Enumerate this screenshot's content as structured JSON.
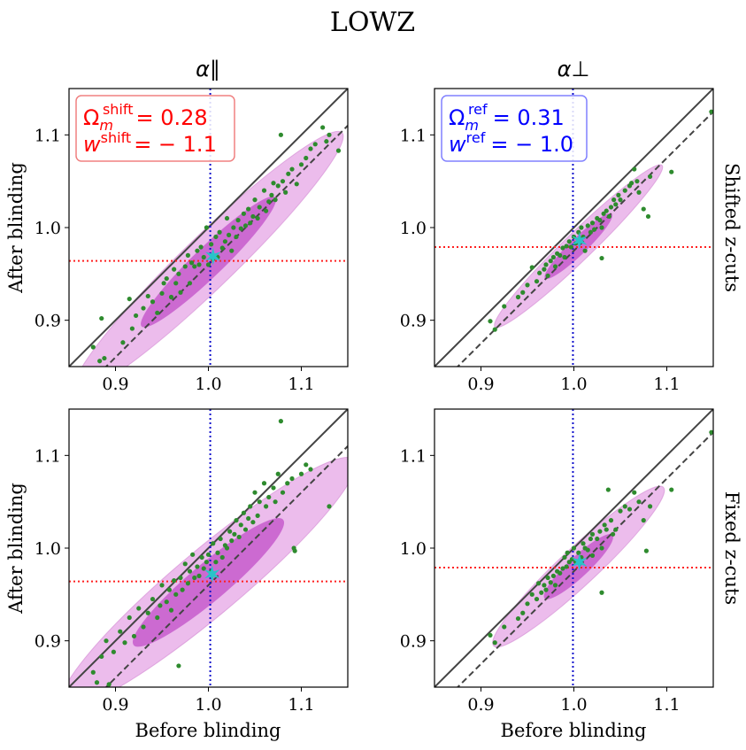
{
  "figure": {
    "title": "LOWZ",
    "column_titles": [
      "α∥",
      "α⊥"
    ],
    "row_labels": [
      "Shifted z-cuts",
      "Fixed z-cuts"
    ],
    "xlabel": "Before blinding",
    "ylabel": "After blinding",
    "colors": {
      "points": "#2e8b2e",
      "ellipse_outer": "#e6a6e6",
      "ellipse_inner": "#c24fc8",
      "identity_line": "#444444",
      "fit_line": "#444444",
      "hline": "#ff2020",
      "vline": "#1010cc",
      "star": "#29c3c8",
      "legend_shift_text": "#ff0000",
      "legend_shift_border": "#f08080",
      "legend_ref_text": "#0000ff",
      "legend_ref_border": "#8080ff"
    }
  },
  "legends": {
    "shift": {
      "omega_base": "Ω",
      "omega_sub": "m",
      "omega_sup": "shift",
      "omega_value": "= 0.28",
      "w_base": "w",
      "w_sup": "shift",
      "w_value": "= − 1.1"
    },
    "ref": {
      "omega_base": "Ω",
      "omega_sub": "m",
      "omega_sup": "ref",
      "omega_value": "= 0.31",
      "w_base": "w",
      "w_sup": "ref",
      "w_value": "= − 1.0"
    }
  },
  "chart_data": [
    {
      "type": "scatter",
      "panel": "top-left",
      "xlim": [
        0.85,
        1.15
      ],
      "ylim": [
        0.85,
        1.15
      ],
      "xticks": [
        0.9,
        1.0,
        1.1
      ],
      "yticks": [
        0.9,
        1.0,
        1.1
      ],
      "tick_labels": [
        "0.9",
        "1.0",
        "1.1"
      ],
      "identity_line": true,
      "fit_line": {
        "slope": 1.0,
        "intercept": -0.04
      },
      "hline_y": 0.964,
      "vline_x": 1.002,
      "star": [
        1.005,
        0.969
      ],
      "ellipse_center": [
        1.0,
        0.963
      ],
      "ellipse_angle_deg": 44,
      "ellipse_outer_axes": [
        0.2,
        0.028
      ],
      "ellipse_inner_axes": [
        0.1,
        0.016
      ],
      "points": [
        [
          0.876,
          0.871
        ],
        [
          0.883,
          0.856
        ],
        [
          0.885,
          0.902
        ],
        [
          0.888,
          0.859
        ],
        [
          0.908,
          0.876
        ],
        [
          0.915,
          0.923
        ],
        [
          0.918,
          0.891
        ],
        [
          0.922,
          0.905
        ],
        [
          0.93,
          0.913
        ],
        [
          0.935,
          0.926
        ],
        [
          0.94,
          0.92
        ],
        [
          0.945,
          0.908
        ],
        [
          0.95,
          0.929
        ],
        [
          0.952,
          0.94
        ],
        [
          0.955,
          0.945
        ],
        [
          0.96,
          0.925
        ],
        [
          0.963,
          0.955
        ],
        [
          0.965,
          0.94
        ],
        [
          0.968,
          0.95
        ],
        [
          0.97,
          0.93
        ],
        [
          0.975,
          0.958
        ],
        [
          0.978,
          0.97
        ],
        [
          0.98,
          0.94
        ],
        [
          0.982,
          0.962
        ],
        [
          0.985,
          0.958
        ],
        [
          0.988,
          0.975
        ],
        [
          0.99,
          0.96
        ],
        [
          0.992,
          0.979
        ],
        [
          0.995,
          0.968
        ],
        [
          0.998,
          1.0
        ],
        [
          1.0,
          0.96
        ],
        [
          1.003,
          0.982
        ],
        [
          1.005,
          0.966
        ],
        [
          1.008,
          0.99
        ],
        [
          1.01,
          0.968
        ],
        [
          1.012,
          0.995
        ],
        [
          1.015,
          0.978
        ],
        [
          1.018,
          0.985
        ],
        [
          1.02,
          1.01
        ],
        [
          1.022,
          0.992
        ],
        [
          1.025,
          0.975
        ],
        [
          1.027,
          1.0
        ],
        [
          1.03,
          0.99
        ],
        [
          1.032,
          1.008
        ],
        [
          1.035,
          0.999
        ],
        [
          1.038,
          1.015
        ],
        [
          1.04,
          1.002
        ],
        [
          1.043,
          1.02
        ],
        [
          1.045,
          1.005
        ],
        [
          1.048,
          1.012
        ],
        [
          1.05,
          1.03
        ],
        [
          1.053,
          1.01
        ],
        [
          1.055,
          1.022
        ],
        [
          1.06,
          1.04
        ],
        [
          1.062,
          1.018
        ],
        [
          1.065,
          1.028
        ],
        [
          1.068,
          1.035
        ],
        [
          1.07,
          1.048
        ],
        [
          1.072,
          1.03
        ],
        [
          1.075,
          1.045
        ],
        [
          1.078,
          1.1
        ],
        [
          1.08,
          1.05
        ],
        [
          1.083,
          1.038
        ],
        [
          1.086,
          1.058
        ],
        [
          1.09,
          1.063
        ],
        [
          1.095,
          1.047
        ],
        [
          1.1,
          1.068
        ],
        [
          1.105,
          1.075
        ],
        [
          1.11,
          1.085
        ],
        [
          1.115,
          1.09
        ],
        [
          1.123,
          1.108
        ],
        [
          1.127,
          1.093
        ],
        [
          1.13,
          1.1
        ],
        [
          1.14,
          1.083
        ]
      ]
    },
    {
      "type": "scatter",
      "panel": "top-right",
      "xlim": [
        0.85,
        1.15
      ],
      "ylim": [
        0.85,
        1.15
      ],
      "xticks": [
        0.9,
        1.0,
        1.1
      ],
      "yticks": [
        0.9,
        1.0,
        1.1
      ],
      "tick_labels": [
        "0.9",
        "1.0",
        "1.1"
      ],
      "identity_line": true,
      "fit_line": {
        "slope": 1.0,
        "intercept": -0.025
      },
      "hline_y": 0.979,
      "vline_x": 0.999,
      "star": [
        1.006,
        0.986
      ],
      "ellipse_center": [
        1.005,
        0.98
      ],
      "ellipse_angle_deg": 44,
      "ellipse_outer_axes": [
        0.125,
        0.015
      ],
      "ellipse_inner_axes": [
        0.05,
        0.009
      ],
      "points": [
        [
          0.91,
          0.899
        ],
        [
          0.915,
          0.89
        ],
        [
          0.925,
          0.915
        ],
        [
          0.94,
          0.925
        ],
        [
          0.945,
          0.93
        ],
        [
          0.95,
          0.938
        ],
        [
          0.955,
          0.957
        ],
        [
          0.96,
          0.942
        ],
        [
          0.963,
          0.951
        ],
        [
          0.968,
          0.955
        ],
        [
          0.97,
          0.96
        ],
        [
          0.972,
          0.948
        ],
        [
          0.975,
          0.964
        ],
        [
          0.978,
          0.968
        ],
        [
          0.98,
          0.958
        ],
        [
          0.982,
          0.972
        ],
        [
          0.985,
          0.97
        ],
        [
          0.988,
          0.978
        ],
        [
          0.99,
          0.968
        ],
        [
          0.992,
          0.98
        ],
        [
          0.995,
          0.985
        ],
        [
          0.997,
          0.979
        ],
        [
          1.0,
          0.99
        ],
        [
          1.002,
          0.983
        ],
        [
          1.005,
          0.995
        ],
        [
          1.008,
          1.0
        ],
        [
          1.01,
          0.99
        ],
        [
          1.012,
          0.975
        ],
        [
          1.015,
          1.002
        ],
        [
          1.018,
          0.995
        ],
        [
          1.02,
          1.005
        ],
        [
          1.022,
          0.998
        ],
        [
          1.025,
          1.01
        ],
        [
          1.028,
          1.008
        ],
        [
          1.03,
          1.0
        ],
        [
          1.03,
          0.967
        ],
        [
          1.032,
          1.015
        ],
        [
          1.035,
          1.018
        ],
        [
          1.038,
          1.012
        ],
        [
          1.04,
          1.022
        ],
        [
          1.043,
          1.03
        ],
        [
          1.045,
          1.025
        ],
        [
          1.048,
          1.035
        ],
        [
          1.05,
          1.03
        ],
        [
          1.055,
          1.04
        ],
        [
          1.06,
          1.045
        ],
        [
          1.062,
          1.048
        ],
        [
          1.065,
          1.063
        ],
        [
          1.068,
          1.05
        ],
        [
          1.07,
          1.038
        ],
        [
          1.075,
          1.02
        ],
        [
          1.08,
          1.012
        ],
        [
          1.082,
          1.055
        ],
        [
          1.105,
          1.06
        ],
        [
          1.148,
          1.125
        ]
      ]
    },
    {
      "type": "scatter",
      "panel": "bottom-left",
      "xlim": [
        0.85,
        1.15
      ],
      "ylim": [
        0.85,
        1.15
      ],
      "xticks": [
        0.9,
        1.0,
        1.1
      ],
      "yticks": [
        0.9,
        1.0,
        1.1
      ],
      "tick_labels": [
        "0.9",
        "1.0",
        "1.1"
      ],
      "identity_line": true,
      "fit_line": {
        "slope": 1.0,
        "intercept": -0.04
      },
      "hline_y": 0.964,
      "vline_x": 1.002,
      "star": [
        1.004,
        0.972
      ],
      "ellipse_center": [
        1.0,
        0.963
      ],
      "ellipse_angle_deg": 40,
      "ellipse_outer_axes": [
        0.205,
        0.035
      ],
      "ellipse_inner_axes": [
        0.105,
        0.02
      ],
      "points": [
        [
          0.876,
          0.866
        ],
        [
          0.88,
          0.855
        ],
        [
          0.885,
          0.883
        ],
        [
          0.89,
          0.9
        ],
        [
          0.893,
          0.853
        ],
        [
          0.898,
          0.888
        ],
        [
          0.905,
          0.91
        ],
        [
          0.91,
          0.898
        ],
        [
          0.915,
          0.925
        ],
        [
          0.92,
          0.905
        ],
        [
          0.925,
          0.935
        ],
        [
          0.93,
          0.915
        ],
        [
          0.935,
          0.93
        ],
        [
          0.94,
          0.945
        ],
        [
          0.945,
          0.925
        ],
        [
          0.948,
          0.938
        ],
        [
          0.95,
          0.96
        ],
        [
          0.955,
          0.942
        ],
        [
          0.958,
          0.955
        ],
        [
          0.96,
          0.933
        ],
        [
          0.963,
          0.965
        ],
        [
          0.965,
          0.95
        ],
        [
          0.968,
          0.873
        ],
        [
          0.97,
          0.968
        ],
        [
          0.972,
          0.955
        ],
        [
          0.975,
          0.983
        ],
        [
          0.978,
          0.962
        ],
        [
          0.98,
          0.975
        ],
        [
          0.983,
          0.993
        ],
        [
          0.985,
          0.968
        ],
        [
          0.988,
          0.98
        ],
        [
          0.99,
          0.97
        ],
        [
          0.993,
          0.99
        ],
        [
          0.995,
          0.978
        ],
        [
          0.998,
          0.985
        ],
        [
          1.0,
          0.993
        ],
        [
          1.003,
          0.975
        ],
        [
          1.005,
          1.005
        ],
        [
          1.008,
          0.985
        ],
        [
          1.01,
          0.995
        ],
        [
          1.013,
          1.01
        ],
        [
          1.015,
          0.99
        ],
        [
          1.018,
          1.003
        ],
        [
          1.02,
          1.0
        ],
        [
          1.023,
          1.018
        ],
        [
          1.025,
          1.008
        ],
        [
          1.028,
          1.015
        ],
        [
          1.03,
          1.03
        ],
        [
          1.033,
          1.012
        ],
        [
          1.035,
          1.025
        ],
        [
          1.038,
          1.038
        ],
        [
          1.04,
          1.02
        ],
        [
          1.043,
          1.032
        ],
        [
          1.045,
          1.045
        ],
        [
          1.048,
          1.028
        ],
        [
          1.05,
          1.06
        ],
        [
          1.053,
          1.035
        ],
        [
          1.055,
          1.05
        ],
        [
          1.06,
          1.07
        ],
        [
          1.062,
          1.045
        ],
        [
          1.065,
          1.055
        ],
        [
          1.07,
          1.065
        ],
        [
          1.072,
          1.05
        ],
        [
          1.075,
          1.08
        ],
        [
          1.078,
          1.137
        ],
        [
          1.08,
          1.06
        ],
        [
          1.085,
          1.07
        ],
        [
          1.09,
          1.075
        ],
        [
          1.092,
          1.0
        ],
        [
          1.093,
          0.997
        ],
        [
          1.1,
          1.08
        ],
        [
          1.105,
          1.09
        ],
        [
          1.11,
          1.085
        ],
        [
          1.13,
          1.045
        ]
      ]
    },
    {
      "type": "scatter",
      "panel": "bottom-right",
      "xlim": [
        0.85,
        1.15
      ],
      "ylim": [
        0.85,
        1.15
      ],
      "xticks": [
        0.9,
        1.0,
        1.1
      ],
      "yticks": [
        0.9,
        1.0,
        1.1
      ],
      "tick_labels": [
        "0.9",
        "1.0",
        "1.1"
      ],
      "identity_line": true,
      "fit_line": {
        "slope": 1.0,
        "intercept": -0.025
      },
      "hline_y": 0.979,
      "vline_x": 0.999,
      "star": [
        1.006,
        0.985
      ],
      "ellipse_center": [
        1.005,
        0.98
      ],
      "ellipse_angle_deg": 43,
      "ellipse_outer_axes": [
        0.125,
        0.02
      ],
      "ellipse_inner_axes": [
        0.05,
        0.011
      ],
      "points": [
        [
          0.91,
          0.906
        ],
        [
          0.915,
          0.898
        ],
        [
          0.925,
          0.915
        ],
        [
          0.94,
          0.924
        ],
        [
          0.945,
          0.93
        ],
        [
          0.95,
          0.94
        ],
        [
          0.955,
          0.95
        ],
        [
          0.96,
          0.945
        ],
        [
          0.962,
          0.962
        ],
        [
          0.965,
          0.952
        ],
        [
          0.968,
          0.96
        ],
        [
          0.97,
          0.955
        ],
        [
          0.972,
          0.968
        ],
        [
          0.975,
          0.963
        ],
        [
          0.978,
          0.97
        ],
        [
          0.98,
          0.96
        ],
        [
          0.982,
          0.975
        ],
        [
          0.985,
          0.973
        ],
        [
          0.988,
          0.978
        ],
        [
          0.99,
          0.99
        ],
        [
          0.992,
          0.98
        ],
        [
          0.993,
          0.995
        ],
        [
          0.995,
          0.985
        ],
        [
          0.998,
          0.988
        ],
        [
          1.0,
          1.0
        ],
        [
          1.002,
          0.985
        ],
        [
          1.005,
          0.995
        ],
        [
          1.008,
          0.99
        ],
        [
          1.01,
          1.005
        ],
        [
          1.012,
          1.0
        ],
        [
          1.015,
          0.998
        ],
        [
          1.018,
          1.01
        ],
        [
          1.02,
          1.015
        ],
        [
          1.02,
          0.992
        ],
        [
          1.025,
          1.01
        ],
        [
          1.028,
          1.018
        ],
        [
          1.03,
          1.0
        ],
        [
          1.03,
          0.952
        ],
        [
          1.033,
          1.025
        ],
        [
          1.035,
          1.02
        ],
        [
          1.037,
          1.063
        ],
        [
          1.04,
          1.03
        ],
        [
          1.042,
          1.015
        ],
        [
          1.045,
          1.02
        ],
        [
          1.05,
          1.04
        ],
        [
          1.055,
          1.045
        ],
        [
          1.06,
          1.042
        ],
        [
          1.065,
          1.06
        ],
        [
          1.07,
          1.05
        ],
        [
          1.075,
          1.03
        ],
        [
          1.078,
          0.997
        ],
        [
          1.082,
          1.045
        ],
        [
          1.105,
          1.063
        ],
        [
          1.148,
          1.125
        ]
      ]
    }
  ]
}
